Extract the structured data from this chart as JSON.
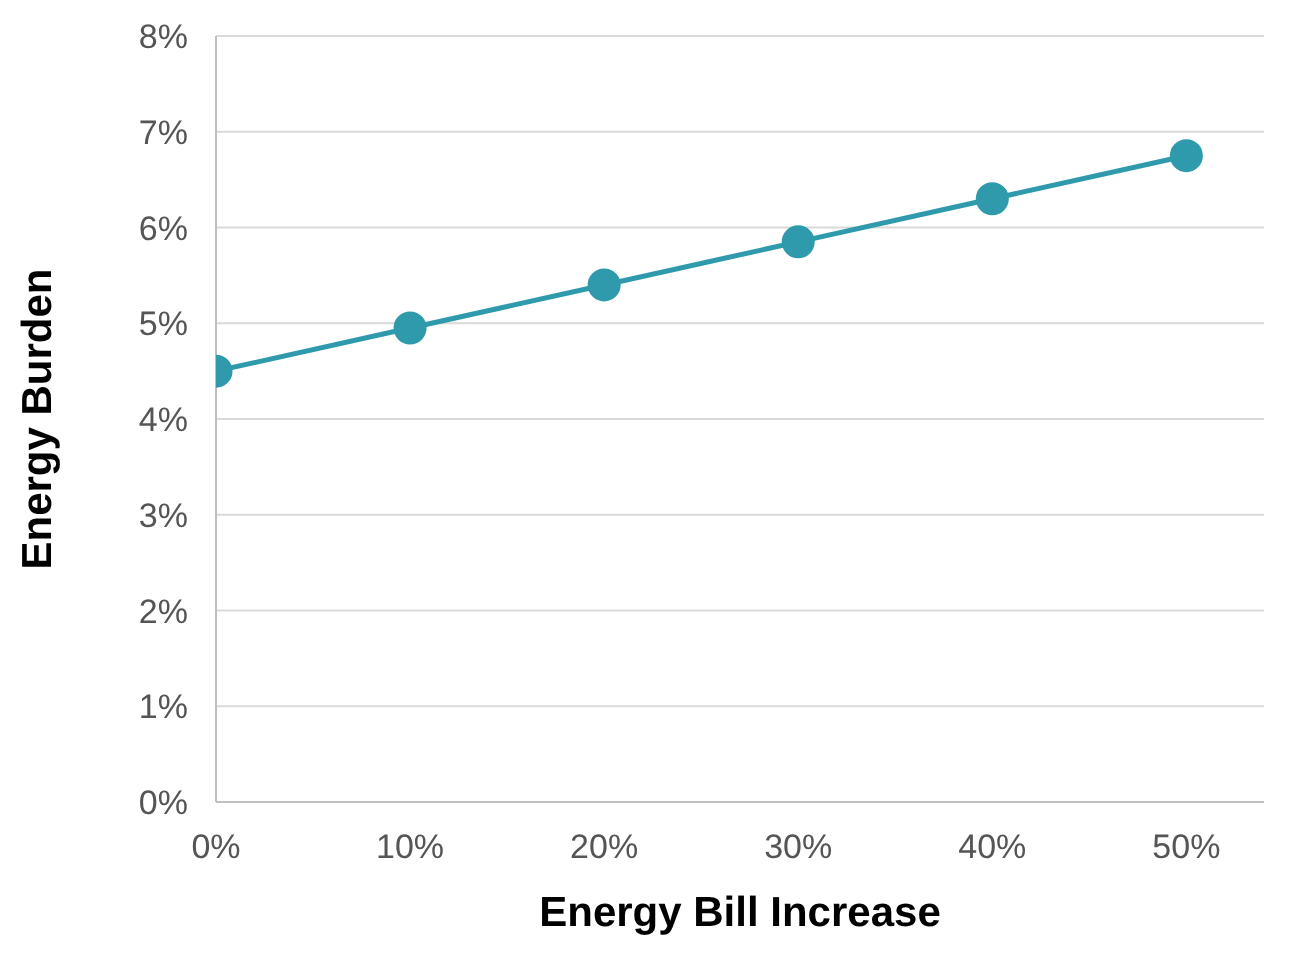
{
  "chart_data": {
    "type": "line",
    "xlabel": "Energy Bill Increase",
    "ylabel": "Energy Burden",
    "x": [
      0,
      10,
      20,
      30,
      40,
      50
    ],
    "series": [
      {
        "color": "#2e9aab",
        "values": [
          4.5,
          4.95,
          5.4,
          5.85,
          6.3,
          6.75
        ]
      }
    ],
    "xlim": [
      0,
      54
    ],
    "xticks": [
      {
        "value": 0,
        "label": "0%"
      },
      {
        "value": 10,
        "label": "10%"
      },
      {
        "value": 20,
        "label": "20%"
      },
      {
        "value": 30,
        "label": "30%"
      },
      {
        "value": 40,
        "label": "40%"
      },
      {
        "value": 50,
        "label": "50%"
      }
    ],
    "ylim": [
      0,
      8
    ],
    "yticks": [
      {
        "value": 0,
        "label": "0%"
      },
      {
        "value": 1,
        "label": "1%"
      },
      {
        "value": 2,
        "label": "2%"
      },
      {
        "value": 3,
        "label": "3%"
      },
      {
        "value": 4,
        "label": "4%"
      },
      {
        "value": 5,
        "label": "5%"
      },
      {
        "value": 6,
        "label": "6%"
      },
      {
        "value": 7,
        "label": "7%"
      },
      {
        "value": 8,
        "label": "8%"
      }
    ],
    "grid": "y",
    "marker": "circle",
    "line_style": "solid"
  }
}
